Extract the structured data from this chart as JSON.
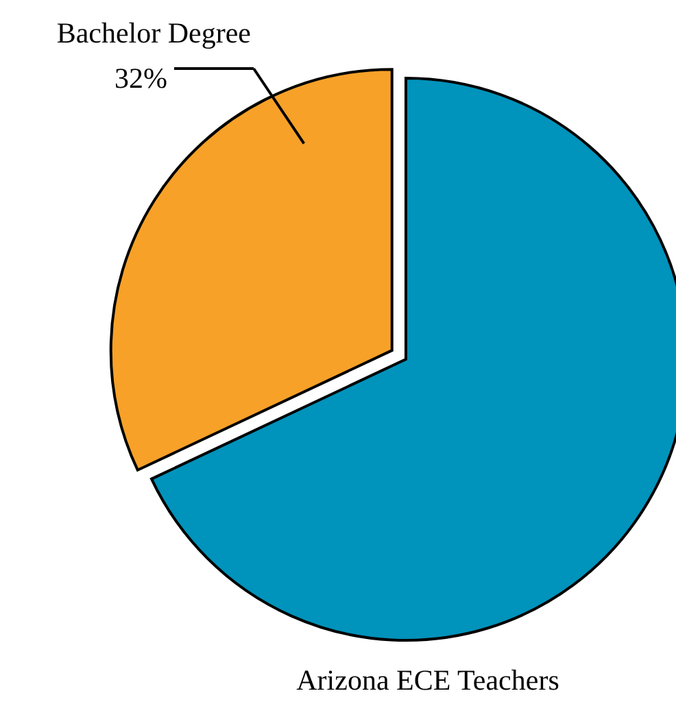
{
  "chart_data": {
    "type": "pie",
    "title": "Arizona ECE Teachers",
    "categories": [
      "Bachelor Degree",
      null
    ],
    "values": [
      32,
      68
    ],
    "colors": [
      "#f7a128",
      "#0093bb"
    ],
    "value_labels": [
      "32%",
      null
    ]
  }
}
